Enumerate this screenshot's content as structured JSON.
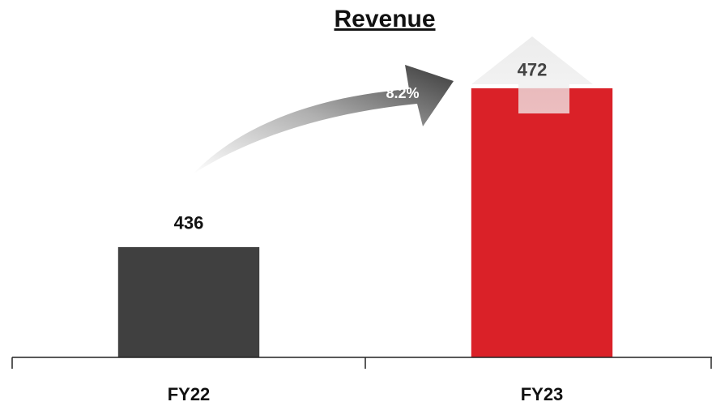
{
  "chart_data": {
    "type": "bar",
    "title": "Revenue",
    "categories": [
      "FY22",
      "FY23"
    ],
    "values": [
      436,
      472
    ],
    "colors": [
      "#404040",
      "#da2128"
    ],
    "annotation": "8.2%",
    "ylim": [
      411,
      474
    ]
  }
}
